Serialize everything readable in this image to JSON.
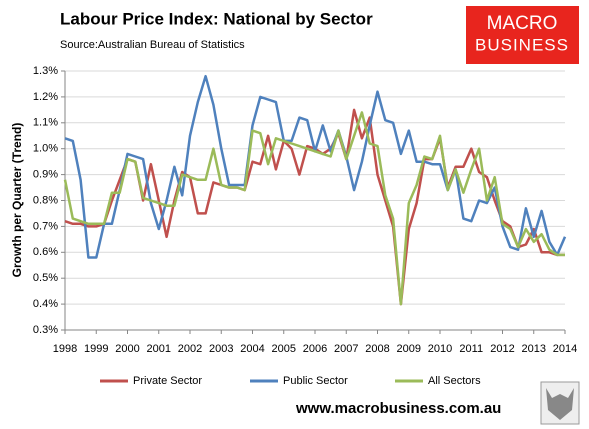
{
  "chart_data": {
    "type": "line",
    "title": "Labour Price Index: National by Sector",
    "subtitle": "Source:Australian Bureau of Statistics",
    "y_label": "Growth per Quarter (Trend)",
    "x": [
      1998,
      1998.25,
      1998.5,
      1998.75,
      1999,
      1999.25,
      1999.5,
      1999.75,
      2000,
      2000.25,
      2000.5,
      2000.75,
      2001,
      2001.25,
      2001.5,
      2001.75,
      2002,
      2002.25,
      2002.5,
      2002.75,
      2003,
      2003.25,
      2003.5,
      2003.75,
      2004,
      2004.25,
      2004.5,
      2004.75,
      2005,
      2005.25,
      2005.5,
      2005.75,
      2006,
      2006.25,
      2006.5,
      2006.75,
      2007,
      2007.25,
      2007.5,
      2007.75,
      2008,
      2008.25,
      2008.5,
      2008.75,
      2009,
      2009.25,
      2009.5,
      2009.75,
      2010,
      2010.25,
      2010.5,
      2010.75,
      2011,
      2011.25,
      2011.5,
      2011.75,
      2012,
      2012.25,
      2012.5,
      2012.75,
      2013,
      2013.25,
      2013.5,
      2013.75,
      2014
    ],
    "series": [
      {
        "name": "Private Sector",
        "color": "#c0504d",
        "values": [
          0.72,
          0.71,
          0.71,
          0.7,
          0.7,
          0.71,
          0.8,
          0.88,
          0.96,
          0.95,
          0.8,
          0.94,
          0.8,
          0.66,
          0.8,
          0.91,
          0.89,
          0.75,
          0.75,
          0.87,
          0.86,
          0.85,
          0.85,
          0.84,
          0.95,
          0.94,
          1.05,
          0.92,
          1.03,
          1.0,
          0.9,
          1.01,
          1.0,
          0.98,
          1.0,
          1.06,
          0.96,
          1.15,
          1.04,
          1.12,
          0.9,
          0.8,
          0.7,
          0.4,
          0.69,
          0.79,
          0.96,
          0.96,
          1.04,
          0.85,
          0.93,
          0.93,
          1.0,
          0.91,
          0.89,
          0.8,
          0.72,
          0.7,
          0.62,
          0.63,
          0.69,
          0.6,
          0.6,
          0.59,
          0.59
        ]
      },
      {
        "name": "Public Sector",
        "color": "#4f81bd",
        "values": [
          1.04,
          1.03,
          0.88,
          0.58,
          0.58,
          0.71,
          0.71,
          0.84,
          0.98,
          0.97,
          0.96,
          0.79,
          0.69,
          0.8,
          0.93,
          0.82,
          1.05,
          1.18,
          1.28,
          1.17,
          1.0,
          0.86,
          0.86,
          0.86,
          1.09,
          1.2,
          1.19,
          1.18,
          1.03,
          1.03,
          1.12,
          1.11,
          0.99,
          1.09,
          0.99,
          1.07,
          0.97,
          0.84,
          0.95,
          1.09,
          1.22,
          1.11,
          1.1,
          0.98,
          1.07,
          0.95,
          0.95,
          0.94,
          0.94,
          0.84,
          0.92,
          0.73,
          0.72,
          0.8,
          0.79,
          0.85,
          0.7,
          0.62,
          0.61,
          0.77,
          0.66,
          0.76,
          0.64,
          0.59,
          0.66
        ]
      },
      {
        "name": "All Sectors",
        "color": "#9bbb59",
        "values": [
          0.88,
          0.73,
          0.72,
          0.71,
          0.71,
          0.71,
          0.83,
          0.83,
          0.96,
          0.95,
          0.81,
          0.8,
          0.79,
          0.78,
          0.78,
          0.9,
          0.89,
          0.88,
          0.88,
          1.0,
          0.86,
          0.85,
          0.85,
          0.84,
          1.07,
          1.06,
          0.94,
          1.04,
          1.03,
          1.02,
          1.01,
          1.0,
          0.99,
          0.98,
          0.97,
          1.07,
          0.96,
          1.05,
          1.14,
          1.02,
          1.01,
          0.82,
          0.73,
          0.4,
          0.79,
          0.86,
          0.97,
          0.96,
          1.05,
          0.84,
          0.92,
          0.83,
          0.92,
          1.0,
          0.8,
          0.89,
          0.71,
          0.69,
          0.62,
          0.69,
          0.64,
          0.67,
          0.61,
          0.59,
          0.59
        ]
      }
    ],
    "xlim": [
      1998,
      2014
    ],
    "xticks": [
      1998,
      1999,
      2000,
      2001,
      2002,
      2003,
      2004,
      2005,
      2006,
      2007,
      2008,
      2009,
      2010,
      2011,
      2012,
      2013,
      2014
    ],
    "ylim": [
      0.3,
      1.3
    ],
    "yticks": [
      {
        "value": 0.3,
        "label": "0.3%"
      },
      {
        "value": 0.4,
        "label": "0.4%"
      },
      {
        "value": 0.5,
        "label": "0.5%"
      },
      {
        "value": 0.6,
        "label": "0.6%"
      },
      {
        "value": 0.7,
        "label": "0.7%"
      },
      {
        "value": 0.8,
        "label": "0.8%"
      },
      {
        "value": 0.9,
        "label": "0.9%"
      },
      {
        "value": 1.0,
        "label": "1.0%"
      },
      {
        "value": 1.1,
        "label": "1.1%"
      },
      {
        "value": 1.2,
        "label": "1.2%"
      },
      {
        "value": 1.3,
        "label": "1.3%"
      }
    ],
    "grid": true,
    "legend": "bottom"
  },
  "logo": {
    "line1": "MACRO",
    "line2": "BUSINESS"
  },
  "website": "www.macrobusiness.com.au"
}
